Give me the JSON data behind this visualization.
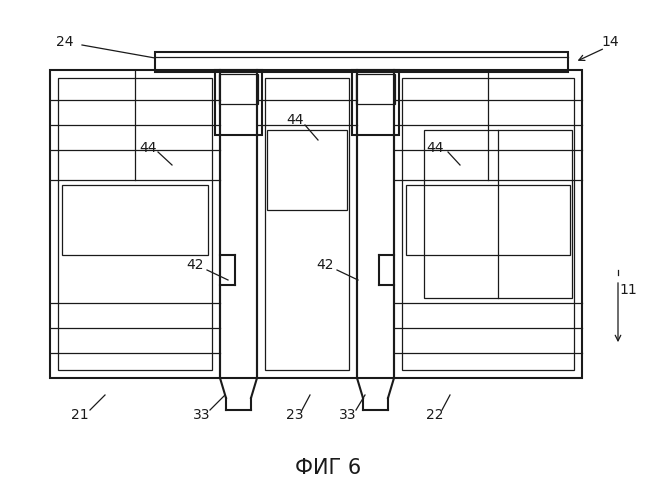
{
  "title": "ФИГ 6",
  "bg_color": "#ffffff",
  "line_color": "#1a1a1a",
  "lw": 1.5,
  "lw_thin": 0.9
}
